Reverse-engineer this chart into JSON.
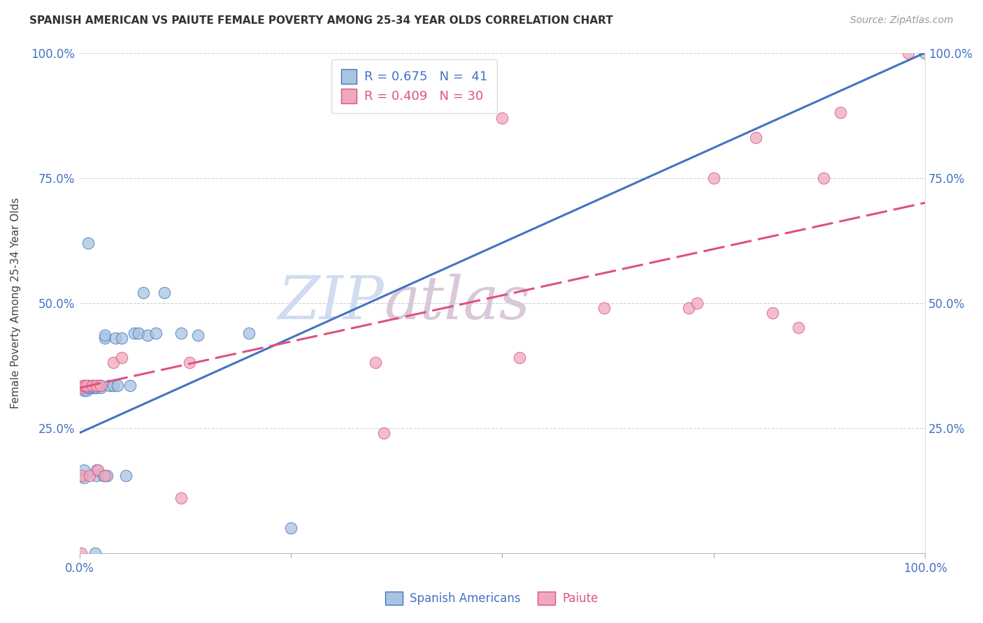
{
  "title": "SPANISH AMERICAN VS PAIUTE FEMALE POVERTY AMONG 25-34 YEAR OLDS CORRELATION CHART",
  "source": "Source: ZipAtlas.com",
  "ylabel": "Female Poverty Among 25-34 Year Olds",
  "xlim": [
    0,
    1.0
  ],
  "ylim": [
    0,
    1.0
  ],
  "blue_color": "#A8C4E0",
  "pink_color": "#F0A8BC",
  "blue_line_color": "#4472C4",
  "pink_line_color": "#E05080",
  "blue_label_color": "#4472C4",
  "pink_label_color": "#E05080",
  "background_color": "#FFFFFF",
  "watermark_color": "#D0DCF0",
  "watermark_color2": "#D8C8D8",
  "spanish_x": [
    0.002,
    0.005,
    0.005,
    0.005,
    0.008,
    0.01,
    0.01,
    0.01,
    0.012,
    0.015,
    0.015,
    0.018,
    0.018,
    0.02,
    0.02,
    0.02,
    0.022,
    0.025,
    0.025,
    0.028,
    0.03,
    0.03,
    0.032,
    0.035,
    0.04,
    0.042,
    0.045,
    0.05,
    0.055,
    0.06,
    0.065,
    0.07,
    0.075,
    0.08,
    0.09,
    0.1,
    0.12,
    0.14,
    0.2,
    0.25,
    1.0
  ],
  "spanish_y": [
    0.33,
    0.15,
    0.165,
    0.325,
    0.325,
    0.33,
    0.335,
    0.62,
    0.33,
    0.33,
    0.335,
    0.0,
    0.33,
    0.155,
    0.165,
    0.33,
    0.335,
    0.33,
    0.335,
    0.155,
    0.43,
    0.435,
    0.155,
    0.335,
    0.335,
    0.43,
    0.335,
    0.43,
    0.155,
    0.335,
    0.44,
    0.44,
    0.52,
    0.435,
    0.44,
    0.52,
    0.44,
    0.435,
    0.44,
    0.05,
    1.0
  ],
  "paiute_x": [
    0.001,
    0.002,
    0.003,
    0.004,
    0.006,
    0.008,
    0.012,
    0.015,
    0.02,
    0.022,
    0.025,
    0.03,
    0.04,
    0.05,
    0.12,
    0.13,
    0.35,
    0.36,
    0.5,
    0.52,
    0.62,
    0.72,
    0.73,
    0.75,
    0.8,
    0.82,
    0.85,
    0.88,
    0.9,
    0.98
  ],
  "paiute_y": [
    0.33,
    0.0,
    0.155,
    0.335,
    0.335,
    0.335,
    0.155,
    0.335,
    0.335,
    0.165,
    0.335,
    0.155,
    0.38,
    0.39,
    0.11,
    0.38,
    0.38,
    0.24,
    0.87,
    0.39,
    0.49,
    0.49,
    0.5,
    0.75,
    0.83,
    0.48,
    0.45,
    0.75,
    0.88,
    1.0
  ],
  "blue_line_x0": 0.0,
  "blue_line_y0": 0.24,
  "blue_line_x1": 1.0,
  "blue_line_y1": 1.0,
  "pink_line_x0": 0.0,
  "pink_line_y0": 0.33,
  "pink_line_x1": 1.0,
  "pink_line_y1": 0.7
}
